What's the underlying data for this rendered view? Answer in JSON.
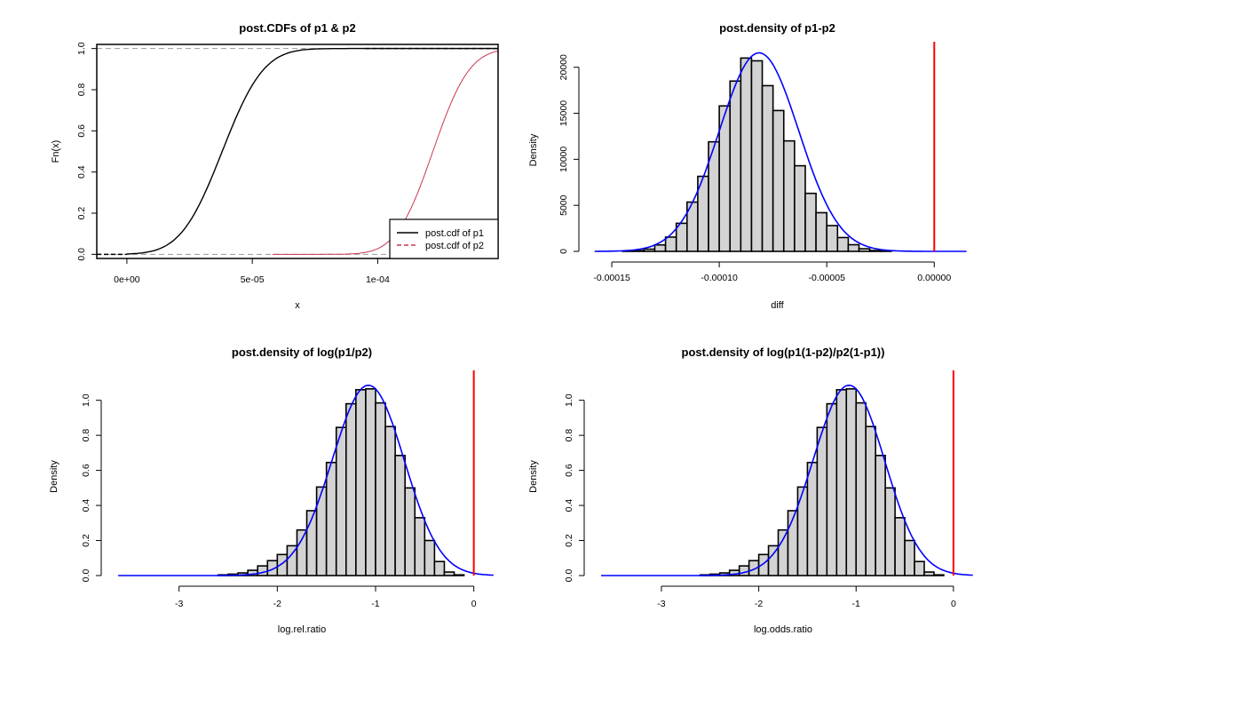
{
  "colors": {
    "bar_fill": "#d3d3d3",
    "density_line": "#0000ff",
    "ref_line": "#ff0000",
    "cdf_p1": "#000000",
    "cdf_p2": "#c8364e",
    "guide": "#9a9a9a"
  },
  "chart_data": [
    {
      "id": "cdf",
      "type": "line",
      "title": "post.CDFs of p1 & p2",
      "xlabel": "x",
      "ylabel": "Fn(x)",
      "xlim": [
        -1.2e-05,
        0.000148
      ],
      "ylim": [
        -0.02,
        1.02
      ],
      "xticks": [
        0,
        5e-05,
        0.0001
      ],
      "xtick_labels": [
        "0e+00",
        "5e-05",
        "1e-04"
      ],
      "yticks": [
        0,
        0.2,
        0.4,
        0.6,
        0.8,
        1
      ],
      "ytick_labels": [
        "0.0",
        "0.2",
        "0.4",
        "0.6",
        "0.8",
        "1.0"
      ],
      "boxed": true,
      "legend": {
        "position": "bottom-right",
        "entries": [
          "post.cdf of p1",
          "post.cdf of p2"
        ]
      },
      "series": [
        {
          "name": "post.cdf of p1",
          "dist": {
            "mean": 3.8e-05,
            "sd": 1.3e-05
          },
          "range": [
            0.0,
            0.000148
          ]
        },
        {
          "name": "post.cdf of p2",
          "dist": {
            "mean": 0.000122,
            "sd": 1.15e-05
          },
          "range": [
            5.8e-05,
            0.000148
          ]
        }
      ]
    },
    {
      "id": "diff",
      "type": "bar",
      "title": "post.density of p1-p2",
      "xlabel": "diff",
      "ylabel": "Density",
      "xlim": [
        -0.000162,
        1.6e-05
      ],
      "ylim": [
        0,
        22000
      ],
      "xticks": [
        -0.00015,
        -0.0001,
        -5e-05,
        0
      ],
      "xtick_labels": [
        "-0.00015",
        "-0.00010",
        "-0.00005",
        "0.00000"
      ],
      "yticks": [
        0,
        5000,
        10000,
        15000,
        20000
      ],
      "ytick_labels": [
        "0",
        "5000",
        "10000",
        "15000",
        "20000"
      ],
      "bins_start": -0.000145,
      "bin_width": 5e-06,
      "values": [
        30,
        90,
        240,
        700,
        1550,
        3050,
        5350,
        8150,
        11900,
        15800,
        18500,
        21000,
        20700,
        18000,
        15300,
        12000,
        9300,
        6300,
        4200,
        2800,
        1500,
        720,
        280,
        90,
        25
      ],
      "density": {
        "mean": -8.15e-05,
        "sd": 1.85e-05,
        "range": [
          -0.000158,
          1.5e-05
        ]
      },
      "ref_line_x": 0
    },
    {
      "id": "logrr",
      "type": "bar",
      "title": "post.density of log(p1/p2)",
      "xlabel": "log.rel.ratio",
      "ylabel": "Density",
      "xlim": [
        -3.72,
        0.22
      ],
      "ylim": [
        0,
        1.13
      ],
      "xticks": [
        -3,
        -2,
        -1,
        0
      ],
      "xtick_labels": [
        "-3",
        "-2",
        "-1",
        "0"
      ],
      "yticks": [
        0,
        0.2,
        0.4,
        0.6,
        0.8,
        1
      ],
      "ytick_labels": [
        "0.0",
        "0.2",
        "0.4",
        "0.6",
        "0.8",
        "1.0"
      ],
      "bins_start": -2.6,
      "bin_width": 0.1,
      "values": [
        0.004,
        0.008,
        0.015,
        0.03,
        0.055,
        0.085,
        0.12,
        0.17,
        0.26,
        0.37,
        0.505,
        0.645,
        0.845,
        0.98,
        1.06,
        1.065,
        0.985,
        0.85,
        0.685,
        0.5,
        0.33,
        0.2,
        0.08,
        0.02,
        0.004
      ],
      "density": {
        "mean": -1.08,
        "sd": 0.368,
        "skew": -0.6,
        "range": [
          -3.62,
          0.2
        ]
      },
      "ref_line_x": 0
    },
    {
      "id": "logor",
      "type": "bar",
      "title": "post.density of log(p1(1-p2)/p2(1-p1))",
      "xlabel": "log.odds.ratio",
      "ylabel": "Density",
      "xlim": [
        -3.72,
        0.22
      ],
      "ylim": [
        0,
        1.13
      ],
      "xticks": [
        -3,
        -2,
        -1,
        0
      ],
      "xtick_labels": [
        "-3",
        "-2",
        "-1",
        "0"
      ],
      "yticks": [
        0,
        0.2,
        0.4,
        0.6,
        0.8,
        1
      ],
      "ytick_labels": [
        "0.0",
        "0.2",
        "0.4",
        "0.6",
        "0.8",
        "1.0"
      ],
      "bins_start": -2.6,
      "bin_width": 0.1,
      "values": [
        0.004,
        0.008,
        0.015,
        0.03,
        0.055,
        0.085,
        0.12,
        0.17,
        0.26,
        0.37,
        0.505,
        0.645,
        0.845,
        0.98,
        1.06,
        1.065,
        0.985,
        0.85,
        0.685,
        0.5,
        0.33,
        0.2,
        0.08,
        0.02,
        0.004
      ],
      "density": {
        "mean": -1.08,
        "sd": 0.368,
        "skew": -0.6,
        "range": [
          -3.62,
          0.2
        ]
      },
      "ref_line_x": 0
    }
  ]
}
